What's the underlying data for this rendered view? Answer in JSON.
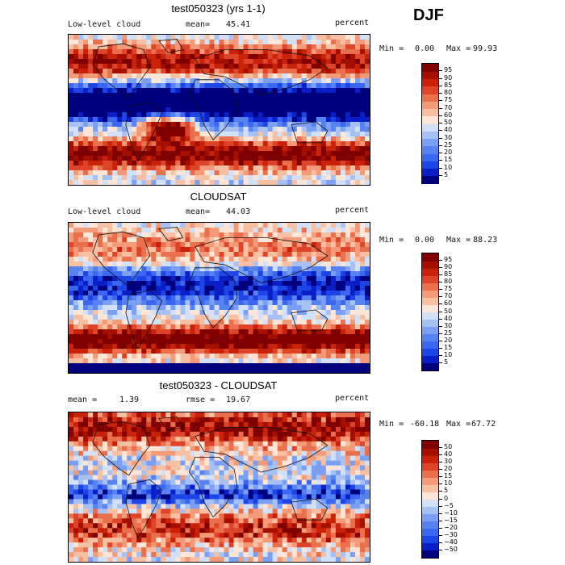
{
  "season": "DJF",
  "chart_data": [
    {
      "type": "heatmap",
      "title": "test050323 (yrs 1-1)",
      "left_label": "Low-level cloud",
      "mean_label": "mean=",
      "mean_value": "45.41",
      "units": "percent",
      "min_label": "Min =",
      "min_value": "0.00",
      "max_label": "Max =",
      "max_value": "99.93",
      "levels": [
        "5",
        "10",
        "15",
        "20",
        "25",
        "30",
        "40",
        "50",
        "60",
        "70",
        "75",
        "80",
        "85",
        "90",
        "95"
      ],
      "colors": [
        "#00007f",
        "#0a1fc8",
        "#1d44e6",
        "#3a66f0",
        "#5683f0",
        "#7b9ff2",
        "#a8c1f5",
        "#d2e0f8",
        "#fde6d8",
        "#f8c0a3",
        "#f39b78",
        "#ea6f4c",
        "#de4428",
        "#c92208",
        "#a50f00",
        "#7f0000"
      ]
    },
    {
      "type": "heatmap",
      "title": "CLOUDSAT",
      "left_label": "Low-level cloud",
      "mean_label": "mean=",
      "mean_value": "44.03",
      "units": "percent",
      "min_label": "Min =",
      "min_value": "0.00",
      "max_label": "Max =",
      "max_value": "88.23",
      "levels": [
        "5",
        "10",
        "15",
        "20",
        "25",
        "30",
        "40",
        "50",
        "60",
        "70",
        "75",
        "80",
        "85",
        "90",
        "95"
      ],
      "colors": [
        "#00007f",
        "#0a1fc8",
        "#1d44e6",
        "#3a66f0",
        "#5683f0",
        "#7b9ff2",
        "#a8c1f5",
        "#d2e0f8",
        "#fde6d8",
        "#f8c0a3",
        "#f39b78",
        "#ea6f4c",
        "#de4428",
        "#c92208",
        "#a50f00",
        "#7f0000"
      ]
    },
    {
      "type": "heatmap",
      "title": "test050323 - CLOUDSAT",
      "left_label": "mean =",
      "mean_label": "rmse =",
      "mean_value": "19.67",
      "left_value": "1.39",
      "units": "percent",
      "min_label": "Min =",
      "min_value": "-60.18",
      "max_label": "Max =",
      "max_value": "67.72",
      "levels": [
        "−50",
        "−40",
        "−30",
        "−20",
        "−15",
        "−10",
        "−5",
        "0",
        "5",
        "10",
        "15",
        "20",
        "30",
        "40",
        "50"
      ],
      "colors": [
        "#00007f",
        "#0a1fc8",
        "#1d44e6",
        "#3a66f0",
        "#5683f0",
        "#7b9ff2",
        "#a8c1f5",
        "#d2e0f8",
        "#fde6d8",
        "#f8c0a3",
        "#f39b78",
        "#ea6f4c",
        "#de4428",
        "#c92208",
        "#a50f00",
        "#7f0000"
      ]
    }
  ]
}
